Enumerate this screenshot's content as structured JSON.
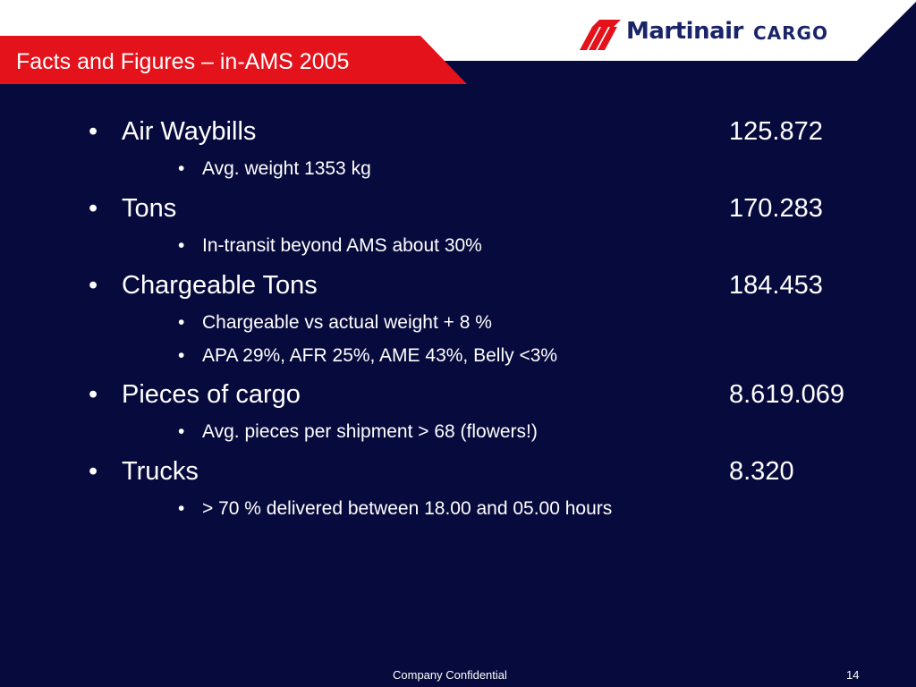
{
  "header": {
    "title": "Facts and Figures – in-AMS 2005",
    "logo": {
      "name": "Martinair",
      "suffix": "CARGO"
    },
    "colors": {
      "red": "#e3121b",
      "white": "#ffffff",
      "navy": "#070a3c"
    }
  },
  "items": [
    {
      "bullet": "•",
      "label": "Air Waybills",
      "value": "125.872",
      "sub": [
        {
          "bullet": "•",
          "text": "Avg. weight 1353 kg"
        }
      ]
    },
    {
      "bullet": "•",
      "label": "Tons",
      "value": "170.283",
      "sub": [
        {
          "bullet": "•",
          "text": "In-transit beyond AMS about 30%"
        }
      ]
    },
    {
      "bullet": "•",
      "label": "Chargeable Tons",
      "value": "184.453",
      "sub": [
        {
          "bullet": "•",
          "text": "Chargeable vs actual weight + 8 %"
        },
        {
          "bullet": "•",
          "text": "APA 29%, AFR 25%, AME 43%, Belly <3%"
        }
      ]
    },
    {
      "bullet": "•",
      "label": "Pieces of cargo",
      "value": "8.619.069",
      "sub": [
        {
          "bullet": "•",
          "text": "Avg. pieces per shipment > 68 (flowers!)"
        }
      ]
    },
    {
      "bullet": "•",
      "label": "Trucks",
      "value": "8.320",
      "sub": [
        {
          "bullet": "•",
          "text": "> 70 % delivered between 18.00 and 05.00 hours"
        }
      ]
    }
  ],
  "footer": {
    "confidential": "Company Confidential",
    "page_number": "14"
  }
}
